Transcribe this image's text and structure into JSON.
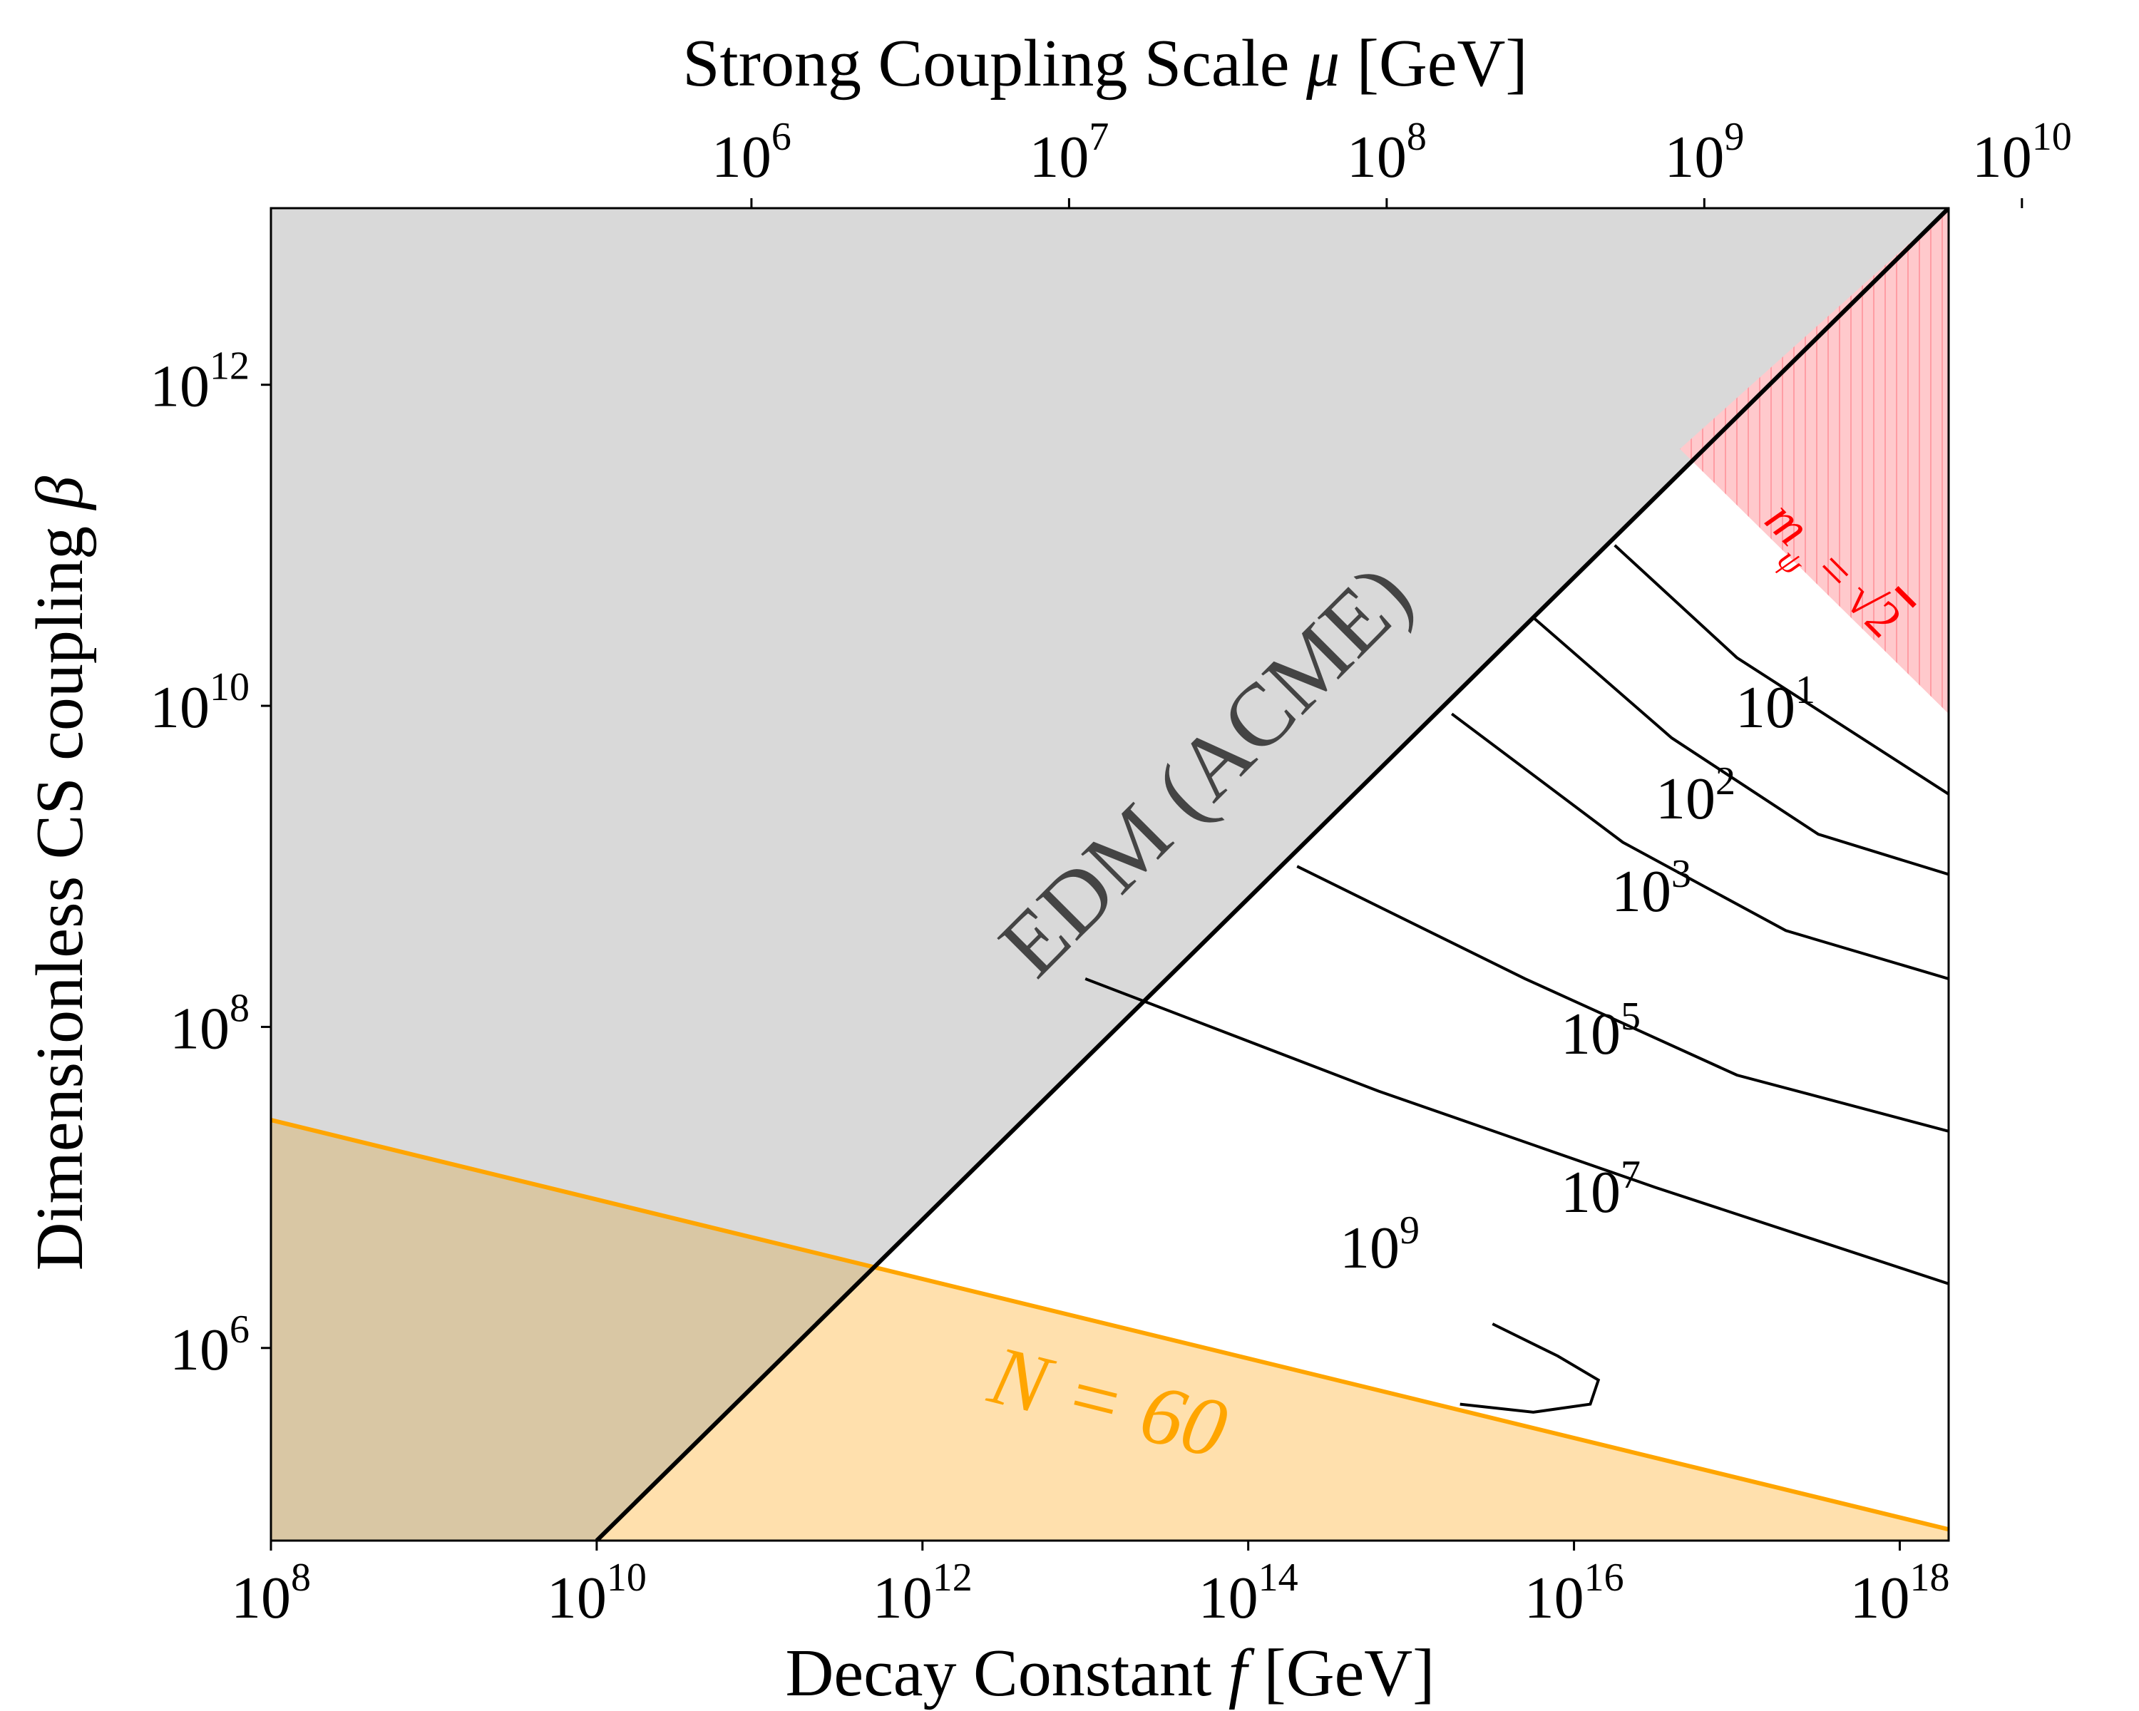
{
  "chart_data": {
    "type": "contour",
    "x_axis": {
      "label_prefix": "Decay Constant ",
      "label_var": "f",
      "label_unit": " [GeV]",
      "scale": "log",
      "range_log10": [
        8,
        18.3
      ],
      "ticks": [
        {
          "log": 8,
          "base": "10",
          "exp": "8"
        },
        {
          "log": 10,
          "base": "10",
          "exp": "10"
        },
        {
          "log": 12,
          "base": "10",
          "exp": "12"
        },
        {
          "log": 14,
          "base": "10",
          "exp": "14"
        },
        {
          "log": 16,
          "base": "10",
          "exp": "16"
        },
        {
          "log": 18,
          "base": "10",
          "exp": "18"
        }
      ]
    },
    "y_axis": {
      "label_prefix": "Dimensionless CS coupling ",
      "label_var": "β",
      "scale": "log",
      "range_log10": [
        4.8,
        13.1
      ],
      "ticks": [
        {
          "log": 6,
          "base": "10",
          "exp": "6"
        },
        {
          "log": 8,
          "base": "10",
          "exp": "8"
        },
        {
          "log": 10,
          "base": "10",
          "exp": "10"
        },
        {
          "log": 12,
          "base": "10",
          "exp": "12"
        }
      ]
    },
    "top_axis": {
      "label_prefix": "Strong Coupling Scale ",
      "label_var": "μ",
      "label_unit": " [GeV]",
      "ticks": [
        {
          "f_log": 10.95,
          "base": "10",
          "exp": "6"
        },
        {
          "f_log": 12.9,
          "base": "10",
          "exp": "7"
        },
        {
          "f_log": 14.85,
          "base": "10",
          "exp": "8"
        },
        {
          "f_log": 16.8,
          "base": "10",
          "exp": "9"
        },
        {
          "f_log": 18.75,
          "base": "10",
          "exp": "10"
        }
      ]
    },
    "regions": [
      {
        "name": "EDM (ACME)",
        "label": "EDM (ACME)",
        "color": "#d9d9d9",
        "boundary_line": [
          [
            10,
            4.8
          ],
          [
            18.3,
            13.1
          ]
        ]
      },
      {
        "name": "N = 60",
        "label_var": "N",
        "label_rest": " = 60",
        "color": "#ffe0ad",
        "line_color": "#ffa500",
        "boundary_line": [
          [
            8,
            7.42
          ],
          [
            18.3,
            4.87
          ]
        ]
      },
      {
        "name": "overlap",
        "color": "#d9c7a4"
      },
      {
        "name": "m_psi = sqrt(2)",
        "label_var": "m",
        "label_sub": "ψ",
        "label_eq": " = ",
        "label_radical": "√",
        "label_num": "2",
        "color": "#ffc9cc",
        "line_color": "#ff0000",
        "polygon": [
          [
            16.65,
            11.6
          ],
          [
            18.3,
            13.1
          ],
          [
            18.3,
            9.95
          ]
        ]
      }
    ],
    "contours": [
      {
        "level": "10^1",
        "base": "10",
        "exp": "1",
        "points": [
          [
            16.25,
            11.0
          ],
          [
            17.0,
            10.3
          ],
          [
            18.3,
            9.45
          ]
        ]
      },
      {
        "level": "10^2",
        "base": "10",
        "exp": "2",
        "points": [
          [
            15.75,
            10.55
          ],
          [
            16.6,
            9.8
          ],
          [
            17.5,
            9.2
          ],
          [
            18.3,
            8.95
          ]
        ]
      },
      {
        "level": "10^3",
        "base": "10",
        "exp": "3",
        "points": [
          [
            15.25,
            9.95
          ],
          [
            16.3,
            9.15
          ],
          [
            17.3,
            8.6
          ],
          [
            18.3,
            8.3
          ]
        ]
      },
      {
        "level": "10^5",
        "base": "10",
        "exp": "5",
        "points": [
          [
            14.3,
            9.0
          ],
          [
            15.7,
            8.3
          ],
          [
            17.0,
            7.7
          ],
          [
            18.3,
            7.35
          ]
        ]
      },
      {
        "level": "10^7",
        "base": "10",
        "exp": "7",
        "points": [
          [
            13.0,
            8.3
          ],
          [
            14.8,
            7.6
          ],
          [
            16.5,
            7.0
          ],
          [
            18.3,
            6.4
          ]
        ]
      },
      {
        "level": "10^9",
        "base": "10",
        "exp": "9",
        "points": [
          [
            15.3,
            5.65
          ],
          [
            15.75,
            5.6
          ],
          [
            16.1,
            5.65
          ],
          [
            16.15,
            5.8
          ],
          [
            15.9,
            5.95
          ],
          [
            15.5,
            6.15
          ]
        ]
      }
    ]
  }
}
